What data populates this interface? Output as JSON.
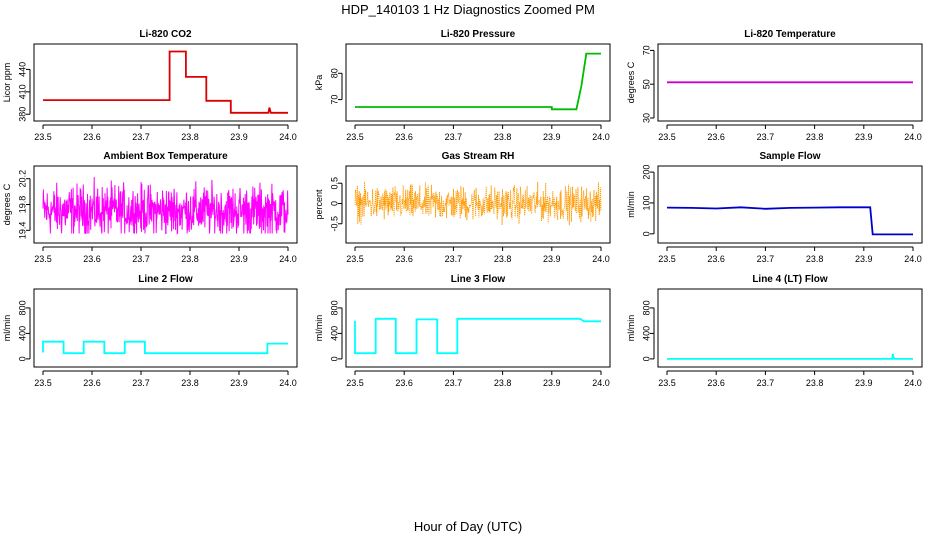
{
  "figure": {
    "title": "HDP_140103  1 Hz Diagnostics Zoomed PM",
    "xlabel": "Hour of Day (UTC)"
  },
  "chart_data": [
    {
      "type": "line",
      "title": "Li-820 CO2",
      "ylabel": "Licor ppm",
      "color": "#dd0000",
      "xlim": [
        23.5,
        24.0
      ],
      "ylim": [
        375,
        470
      ],
      "yticks": [
        380,
        410,
        440
      ],
      "xticks": [
        23.5,
        23.6,
        23.7,
        23.8,
        23.9,
        24.0
      ],
      "series": [
        {
          "x": [
            23.5,
            23.7583,
            23.7583,
            23.7917,
            23.7917,
            23.8333,
            23.8333,
            23.8833,
            23.8833,
            23.96,
            23.962,
            23.965,
            24.0
          ],
          "y": [
            399,
            399,
            464,
            464,
            430,
            430,
            398,
            398,
            382,
            382,
            389,
            382,
            382
          ]
        }
      ]
    },
    {
      "type": "line",
      "title": "Li-820 Pressure",
      "ylabel": "kPa",
      "color": "#00bb00",
      "xlim": [
        23.5,
        24.0
      ],
      "ylim": [
        63,
        90
      ],
      "yticks": [
        70,
        80
      ],
      "xticks": [
        23.5,
        23.6,
        23.7,
        23.8,
        23.9,
        24.0
      ],
      "series": [
        {
          "x": [
            23.5,
            23.9,
            23.9,
            23.95,
            23.96,
            23.97,
            23.97,
            24.0
          ],
          "y": [
            67.2,
            67.2,
            66.3,
            66.3,
            75,
            87.2,
            87.5,
            87.5
          ]
        }
      ]
    },
    {
      "type": "line",
      "title": "Li-820 Temperature",
      "ylabel": "degrees C",
      "color": "#cc00cc",
      "xlim": [
        23.5,
        24.0
      ],
      "ylim": [
        30,
        72
      ],
      "yticks": [
        30,
        50,
        70
      ],
      "xticks": [
        23.5,
        23.6,
        23.7,
        23.8,
        23.9,
        24.0
      ],
      "series": [
        {
          "x": [
            23.5,
            24.0
          ],
          "y": [
            51.1,
            51.1
          ]
        }
      ]
    },
    {
      "type": "line",
      "title": "Ambient Box Temperature",
      "ylabel": "degrees C",
      "color": "#ff00ff",
      "xlim": [
        23.5,
        24.0
      ],
      "ylim": [
        19.25,
        20.35
      ],
      "yticks": [
        19.4,
        19.8,
        20.2
      ],
      "xticks": [
        23.5,
        23.6,
        23.7,
        23.8,
        23.9,
        24.0
      ],
      "noise": {
        "mean": 19.7,
        "amplitude": 0.28,
        "min": 19.35,
        "max": 20.25
      }
    },
    {
      "type": "scatter",
      "title": "Gas Stream RH",
      "ylabel": "percent",
      "color": "#ff9900",
      "xlim": [
        23.5,
        24.0
      ],
      "ylim": [
        -0.9,
        0.85
      ],
      "yticks": [
        -0.5,
        0.0,
        0.5
      ],
      "xticks": [
        23.5,
        23.6,
        23.7,
        23.8,
        23.9,
        24.0
      ],
      "noise": {
        "mean": 0.0,
        "amplitude": 0.3,
        "min": -0.8,
        "max": 0.7
      }
    },
    {
      "type": "line",
      "title": "Sample Flow",
      "ylabel": "ml/min",
      "color": "#0000cc",
      "xlim": [
        23.5,
        24.0
      ],
      "ylim": [
        -20,
        210
      ],
      "yticks": [
        0,
        100,
        200
      ],
      "xticks": [
        23.5,
        23.6,
        23.7,
        23.8,
        23.9,
        24.0
      ],
      "series": [
        {
          "x": [
            23.5,
            23.55,
            23.6,
            23.65,
            23.7,
            23.75,
            23.8,
            23.85,
            23.913,
            23.918,
            24.0
          ],
          "y": [
            85,
            84,
            82,
            86,
            81,
            84,
            85,
            86,
            86,
            -2,
            -2
          ]
        }
      ]
    },
    {
      "type": "line",
      "title": "Line 2 Flow",
      "ylabel": "ml/min",
      "color": "#00ffff",
      "xlim": [
        23.5,
        24.0
      ],
      "ylim": [
        -80,
        1050
      ],
      "yticks": [
        0,
        400,
        800
      ],
      "xticks": [
        23.5,
        23.6,
        23.7,
        23.8,
        23.9,
        24.0
      ],
      "series": [
        {
          "x": [
            23.5,
            23.5,
            23.542,
            23.542,
            23.583,
            23.583,
            23.625,
            23.625,
            23.667,
            23.667,
            23.708,
            23.708,
            23.958,
            23.958,
            24.0
          ],
          "y": [
            100,
            270,
            270,
            90,
            90,
            270,
            270,
            90,
            90,
            270,
            270,
            90,
            90,
            240,
            240
          ]
        }
      ]
    },
    {
      "type": "line",
      "title": "Line 3 Flow",
      "ylabel": "ml/min",
      "color": "#00ffff",
      "xlim": [
        23.5,
        24.0
      ],
      "ylim": [
        -80,
        1050
      ],
      "yticks": [
        0,
        400,
        800
      ],
      "xticks": [
        23.5,
        23.6,
        23.7,
        23.8,
        23.9,
        24.0
      ],
      "series": [
        {
          "x": [
            23.5,
            23.5,
            23.5,
            23.542,
            23.542,
            23.583,
            23.583,
            23.625,
            23.625,
            23.667,
            23.667,
            23.708,
            23.708,
            23.958,
            23.965,
            24.0
          ],
          "y": [
            90,
            600,
            90,
            90,
            630,
            630,
            90,
            90,
            620,
            620,
            90,
            90,
            630,
            630,
            590,
            590
          ]
        }
      ]
    },
    {
      "type": "line",
      "title": "Line 4 (LT) Flow",
      "ylabel": "ml/min",
      "color": "#00ffff",
      "xlim": [
        23.5,
        24.0
      ],
      "ylim": [
        -80,
        1050
      ],
      "yticks": [
        0,
        400,
        800
      ],
      "xticks": [
        23.5,
        23.6,
        23.7,
        23.8,
        23.9,
        24.0
      ],
      "series": [
        {
          "x": [
            23.5,
            23.958,
            23.959,
            23.96,
            23.962,
            24.0
          ],
          "y": [
            0,
            0,
            80,
            40,
            0,
            0
          ]
        }
      ]
    }
  ]
}
